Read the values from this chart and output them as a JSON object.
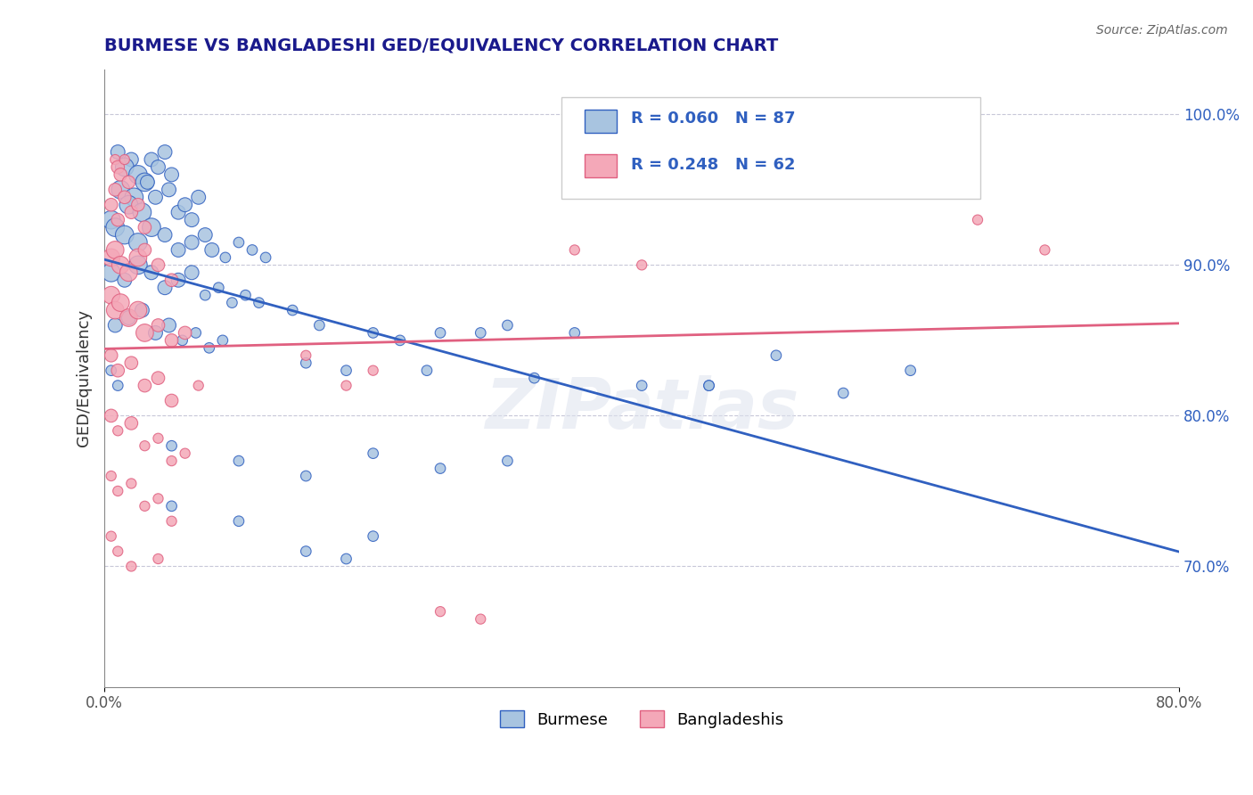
{
  "title": "BURMESE VS BANGLADESHI GED/EQUIVALENCY CORRELATION CHART",
  "source_text": "Source: ZipAtlas.com",
  "ylabel": "GED/Equivalency",
  "xlim": [
    0.0,
    0.8
  ],
  "ylim": [
    0.62,
    1.03
  ],
  "xticklabels": [
    "0.0%",
    "80.0%"
  ],
  "ytick_positions": [
    0.7,
    0.8,
    0.9,
    1.0
  ],
  "ytick_labels": [
    "70.0%",
    "80.0%",
    "90.0%",
    "100.0%"
  ],
  "blue_R": 0.06,
  "blue_N": 87,
  "pink_R": 0.248,
  "pink_N": 62,
  "blue_color": "#a8c4e0",
  "pink_color": "#f4a8b8",
  "blue_line_color": "#3060c0",
  "pink_line_color": "#e06080",
  "legend_blue_label": "Burmese",
  "legend_pink_label": "Bangladeshis",
  "watermark": "ZIPatlas",
  "blue_points": [
    [
      0.01,
      0.975
    ],
    [
      0.02,
      0.97
    ],
    [
      0.015,
      0.965
    ],
    [
      0.025,
      0.96
    ],
    [
      0.03,
      0.955
    ],
    [
      0.035,
      0.97
    ],
    [
      0.04,
      0.965
    ],
    [
      0.045,
      0.975
    ],
    [
      0.05,
      0.96
    ],
    [
      0.012,
      0.95
    ],
    [
      0.022,
      0.945
    ],
    [
      0.032,
      0.955
    ],
    [
      0.018,
      0.94
    ],
    [
      0.028,
      0.935
    ],
    [
      0.038,
      0.945
    ],
    [
      0.048,
      0.95
    ],
    [
      0.055,
      0.935
    ],
    [
      0.06,
      0.94
    ],
    [
      0.065,
      0.93
    ],
    [
      0.07,
      0.945
    ],
    [
      0.005,
      0.93
    ],
    [
      0.008,
      0.925
    ],
    [
      0.015,
      0.92
    ],
    [
      0.025,
      0.915
    ],
    [
      0.035,
      0.925
    ],
    [
      0.045,
      0.92
    ],
    [
      0.055,
      0.91
    ],
    [
      0.065,
      0.915
    ],
    [
      0.075,
      0.92
    ],
    [
      0.08,
      0.91
    ],
    [
      0.09,
      0.905
    ],
    [
      0.1,
      0.915
    ],
    [
      0.11,
      0.91
    ],
    [
      0.12,
      0.905
    ],
    [
      0.005,
      0.895
    ],
    [
      0.015,
      0.89
    ],
    [
      0.025,
      0.9
    ],
    [
      0.035,
      0.895
    ],
    [
      0.045,
      0.885
    ],
    [
      0.055,
      0.89
    ],
    [
      0.065,
      0.895
    ],
    [
      0.075,
      0.88
    ],
    [
      0.085,
      0.885
    ],
    [
      0.095,
      0.875
    ],
    [
      0.105,
      0.88
    ],
    [
      0.115,
      0.875
    ],
    [
      0.008,
      0.86
    ],
    [
      0.018,
      0.865
    ],
    [
      0.028,
      0.87
    ],
    [
      0.038,
      0.855
    ],
    [
      0.048,
      0.86
    ],
    [
      0.058,
      0.85
    ],
    [
      0.068,
      0.855
    ],
    [
      0.078,
      0.845
    ],
    [
      0.088,
      0.85
    ],
    [
      0.14,
      0.87
    ],
    [
      0.16,
      0.86
    ],
    [
      0.2,
      0.855
    ],
    [
      0.22,
      0.85
    ],
    [
      0.25,
      0.855
    ],
    [
      0.28,
      0.855
    ],
    [
      0.3,
      0.86
    ],
    [
      0.35,
      0.855
    ],
    [
      0.15,
      0.835
    ],
    [
      0.18,
      0.83
    ],
    [
      0.24,
      0.83
    ],
    [
      0.32,
      0.825
    ],
    [
      0.4,
      0.82
    ],
    [
      0.05,
      0.78
    ],
    [
      0.1,
      0.77
    ],
    [
      0.15,
      0.76
    ],
    [
      0.2,
      0.775
    ],
    [
      0.25,
      0.765
    ],
    [
      0.3,
      0.77
    ],
    [
      0.05,
      0.74
    ],
    [
      0.1,
      0.73
    ],
    [
      0.15,
      0.71
    ],
    [
      0.18,
      0.705
    ],
    [
      0.2,
      0.72
    ],
    [
      0.45,
      0.82
    ],
    [
      0.6,
      0.83
    ],
    [
      0.5,
      0.84
    ],
    [
      0.005,
      0.83
    ],
    [
      0.01,
      0.82
    ],
    [
      0.45,
      0.82
    ],
    [
      0.55,
      0.815
    ]
  ],
  "pink_points": [
    [
      0.008,
      0.97
    ],
    [
      0.01,
      0.965
    ],
    [
      0.012,
      0.96
    ],
    [
      0.015,
      0.97
    ],
    [
      0.018,
      0.955
    ],
    [
      0.005,
      0.94
    ],
    [
      0.008,
      0.95
    ],
    [
      0.01,
      0.93
    ],
    [
      0.015,
      0.945
    ],
    [
      0.02,
      0.935
    ],
    [
      0.025,
      0.94
    ],
    [
      0.03,
      0.925
    ],
    [
      0.005,
      0.905
    ],
    [
      0.008,
      0.91
    ],
    [
      0.012,
      0.9
    ],
    [
      0.018,
      0.895
    ],
    [
      0.025,
      0.905
    ],
    [
      0.03,
      0.91
    ],
    [
      0.04,
      0.9
    ],
    [
      0.05,
      0.89
    ],
    [
      0.005,
      0.88
    ],
    [
      0.008,
      0.87
    ],
    [
      0.012,
      0.875
    ],
    [
      0.018,
      0.865
    ],
    [
      0.025,
      0.87
    ],
    [
      0.03,
      0.855
    ],
    [
      0.04,
      0.86
    ],
    [
      0.05,
      0.85
    ],
    [
      0.06,
      0.855
    ],
    [
      0.005,
      0.84
    ],
    [
      0.01,
      0.83
    ],
    [
      0.02,
      0.835
    ],
    [
      0.03,
      0.82
    ],
    [
      0.04,
      0.825
    ],
    [
      0.05,
      0.81
    ],
    [
      0.07,
      0.82
    ],
    [
      0.005,
      0.8
    ],
    [
      0.01,
      0.79
    ],
    [
      0.02,
      0.795
    ],
    [
      0.03,
      0.78
    ],
    [
      0.04,
      0.785
    ],
    [
      0.05,
      0.77
    ],
    [
      0.06,
      0.775
    ],
    [
      0.005,
      0.76
    ],
    [
      0.01,
      0.75
    ],
    [
      0.02,
      0.755
    ],
    [
      0.03,
      0.74
    ],
    [
      0.04,
      0.745
    ],
    [
      0.05,
      0.73
    ],
    [
      0.005,
      0.72
    ],
    [
      0.01,
      0.71
    ],
    [
      0.02,
      0.7
    ],
    [
      0.04,
      0.705
    ],
    [
      0.25,
      0.67
    ],
    [
      0.28,
      0.665
    ],
    [
      0.65,
      0.93
    ],
    [
      0.7,
      0.91
    ],
    [
      0.15,
      0.84
    ],
    [
      0.2,
      0.83
    ],
    [
      0.18,
      0.82
    ],
    [
      0.35,
      0.91
    ],
    [
      0.4,
      0.9
    ]
  ]
}
